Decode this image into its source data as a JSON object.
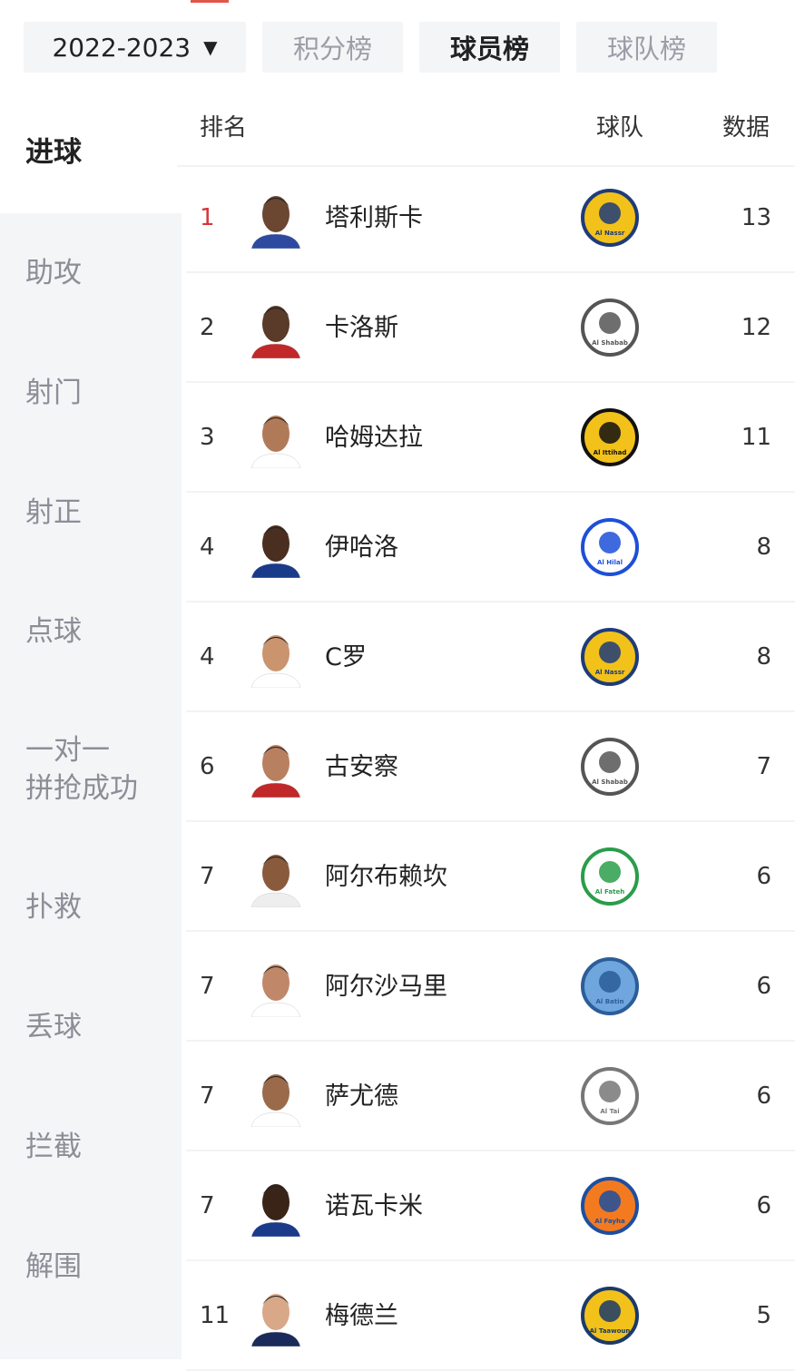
{
  "colors": {
    "accent": "#e0574a",
    "rank_top": "#d9343a",
    "sidebar_bg": "#f4f5f7"
  },
  "header": {
    "season": "2022-2023",
    "season_arrow": "▼",
    "tabs": [
      "积分榜",
      "球员榜",
      "球队榜"
    ],
    "active_tab": 1
  },
  "sidebar": {
    "items": [
      "进球",
      "助攻",
      "射门",
      "射正",
      "点球",
      "一对一\n拼抢成功",
      "扑救",
      "丢球",
      "拦截",
      "解围"
    ],
    "active": 0
  },
  "table": {
    "col_rank": "排名",
    "col_team": "球队",
    "col_data": "数据",
    "rows": [
      {
        "rank": "1",
        "name": "塔利斯卡",
        "team": "Al Nassr",
        "value": "13"
      },
      {
        "rank": "2",
        "name": "卡洛斯",
        "team": "Al Shabab",
        "value": "12"
      },
      {
        "rank": "3",
        "name": "哈姆达拉",
        "team": "Al Ittihad",
        "value": "11"
      },
      {
        "rank": "4",
        "name": "伊哈洛",
        "team": "Al Hilal",
        "value": "8"
      },
      {
        "rank": "4",
        "name": "C罗",
        "team": "Al Nassr",
        "value": "8"
      },
      {
        "rank": "6",
        "name": "古安察",
        "team": "Al Shabab",
        "value": "7"
      },
      {
        "rank": "7",
        "name": "阿尔布赖坎",
        "team": "Al Fateh",
        "value": "6"
      },
      {
        "rank": "7",
        "name": "阿尔沙马里",
        "team": "Al Batin",
        "value": "6"
      },
      {
        "rank": "7",
        "name": "萨尤德",
        "team": "Al Tai",
        "value": "6"
      },
      {
        "rank": "7",
        "name": "诺瓦卡米",
        "team": "Al Fayha",
        "value": "6"
      },
      {
        "rank": "11",
        "name": "梅德兰",
        "team": "Al Taawoun",
        "value": "5"
      }
    ]
  }
}
